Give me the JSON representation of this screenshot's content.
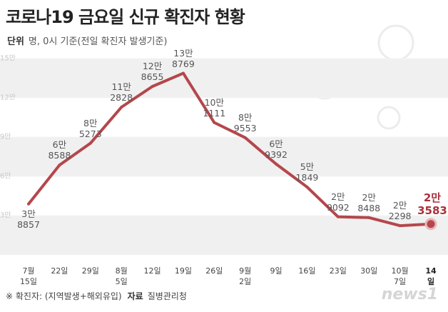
{
  "title": "코로나19 금요일 신규 확진자 현황",
  "unit_label": "단위",
  "unit_text": "명, 0시 기준(전일 확진자 발생기준)",
  "footnote": "※ 확진자: (지역발생+해외유입)",
  "source_label": "자료",
  "source": "질병관리청",
  "logo": "news1",
  "chart_data": {
    "type": "line",
    "categories": [
      "7월\n15일",
      "22일",
      "29일",
      "8월\n5일",
      "12일",
      "19일",
      "26일",
      "9월\n2일",
      "9일",
      "16일",
      "23일",
      "30일",
      "10월\n7일",
      "14일"
    ],
    "values": [
      38857,
      68588,
      85273,
      112828,
      128655,
      138769,
      101111,
      89553,
      69392,
      51849,
      29092,
      28488,
      22298,
      23583
    ],
    "value_labels": [
      "3만\n8857",
      "6만\n8588",
      "8만\n5273",
      "11만\n2828",
      "12만\n8655",
      "13만\n8769",
      "10만\n1111",
      "8만\n9553",
      "6만\n9392",
      "5만\n1849",
      "2만\n9092",
      "2만\n8488",
      "2만\n2298",
      "2만\n3583"
    ],
    "color": "#b4474c",
    "ylim": [
      0,
      150000
    ],
    "yticks": [
      {
        "value": 30000,
        "label": "3만"
      },
      {
        "value": 60000,
        "label": "6만"
      },
      {
        "value": 90000,
        "label": "9만"
      },
      {
        "value": 120000,
        "label": "12만"
      },
      {
        "value": 150000,
        "label": "15만"
      }
    ],
    "grid": true
  }
}
